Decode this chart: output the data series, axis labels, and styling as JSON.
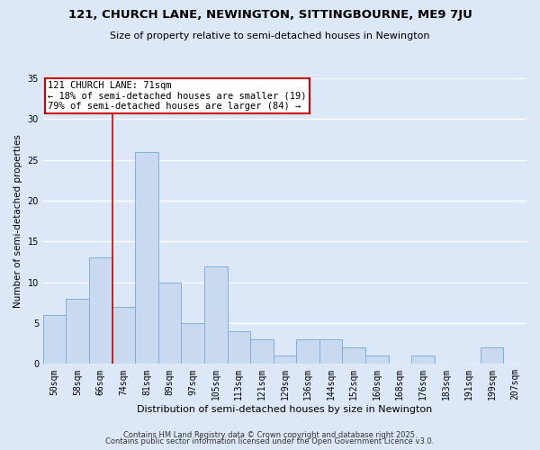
{
  "title": "121, CHURCH LANE, NEWINGTON, SITTINGBOURNE, ME9 7JU",
  "subtitle": "Size of property relative to semi-detached houses in Newington",
  "xlabel": "Distribution of semi-detached houses by size in Newington",
  "ylabel": "Number of semi-detached properties",
  "bar_labels": [
    "50sqm",
    "58sqm",
    "66sqm",
    "74sqm",
    "81sqm",
    "89sqm",
    "97sqm",
    "105sqm",
    "113sqm",
    "121sqm",
    "129sqm",
    "136sqm",
    "144sqm",
    "152sqm",
    "160sqm",
    "168sqm",
    "176sqm",
    "183sqm",
    "191sqm",
    "199sqm",
    "207sqm"
  ],
  "bar_values": [
    6,
    8,
    13,
    7,
    26,
    10,
    5,
    12,
    4,
    3,
    1,
    3,
    3,
    2,
    1,
    0,
    1,
    0,
    0,
    2,
    0
  ],
  "bar_color": "#c9d9f0",
  "bar_edge_color": "#7fb0d8",
  "background_color": "#dce8f8",
  "grid_color": "#ffffff",
  "vline_x": 2.5,
  "vline_color": "#cc0000",
  "annotation_title": "121 CHURCH LANE: 71sqm",
  "annotation_line1": "← 18% of semi-detached houses are smaller (19)",
  "annotation_line2": "79% of semi-detached houses are larger (84) →",
  "annotation_box_color": "#ffffff",
  "annotation_box_edge": "#cc0000",
  "footer1": "Contains HM Land Registry data © Crown copyright and database right 2025.",
  "footer2": "Contains public sector information licensed under the Open Government Licence v3.0.",
  "ylim": [
    0,
    35
  ],
  "yticks": [
    0,
    5,
    10,
    15,
    20,
    25,
    30,
    35
  ],
  "title_fontsize": 9.5,
  "subtitle_fontsize": 8.0,
  "xlabel_fontsize": 8.0,
  "ylabel_fontsize": 7.5,
  "tick_fontsize": 7.0,
  "annot_fontsize": 7.5,
  "footer_fontsize": 6.0
}
